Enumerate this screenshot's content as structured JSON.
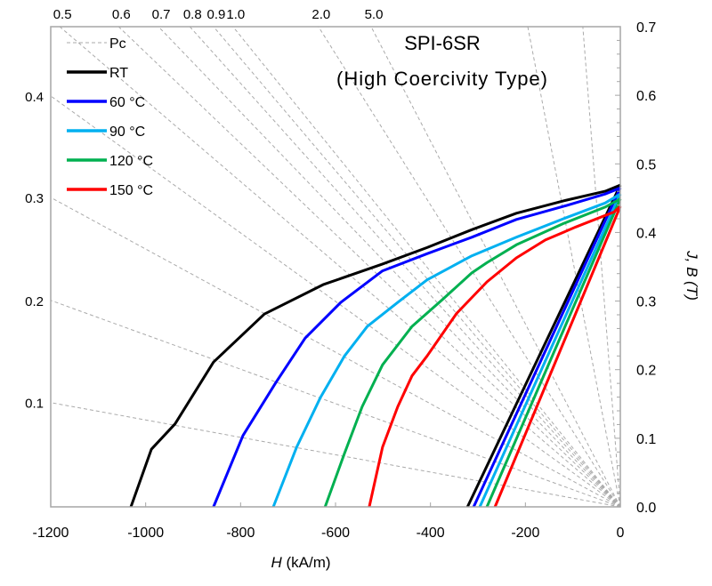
{
  "chart_data": {
    "type": "line",
    "title": [
      "SPI-6SR",
      "(High Coercivity Type)"
    ],
    "xlabel_italic": "H",
    "xlabel_unit": " (kA/m)",
    "ylabel": "J, B (T)",
    "xlim": [
      -1200,
      0
    ],
    "ylim": [
      0,
      0.7
    ],
    "xticks": [
      "-1200",
      "-1000",
      "-800",
      "-600",
      "-400",
      "-200",
      "0"
    ],
    "xtick_values": [
      -1200,
      -1000,
      -800,
      -600,
      -400,
      -200,
      0
    ],
    "yticks": [
      "0.0",
      "0.1",
      "0.2",
      "0.3",
      "0.4",
      "0.5",
      "0.6",
      "0.7"
    ],
    "ytick_values": [
      0,
      0.1,
      0.2,
      0.3,
      0.4,
      0.5,
      0.6,
      0.7
    ],
    "y_axis_side": "right",
    "grid": false,
    "legend_placement": "top-left",
    "pc_legend": "Pc",
    "pc_color": "#aaaaaa",
    "pc_lines": [
      {
        "label": "0.1",
        "end": [
          -1200,
          0.152
        ],
        "label_side": "left"
      },
      {
        "label": "0.2",
        "end": [
          -1200,
          0.301
        ],
        "label_side": "left"
      },
      {
        "label": "0.3",
        "end": [
          -1200,
          0.451
        ],
        "label_side": "left"
      },
      {
        "label": "0.4",
        "end": [
          -1200,
          0.599
        ],
        "label_side": "left"
      },
      {
        "label": "0.5",
        "end": [
          -1181,
          0.7
        ],
        "label_side": "top"
      },
      {
        "label": "0.6",
        "end": [
          -1057,
          0.7
        ],
        "label_side": "top"
      },
      {
        "label": "0.7",
        "end": [
          -973,
          0.7
        ],
        "label_side": "top"
      },
      {
        "label": "0.8",
        "end": [
          -907,
          0.7
        ],
        "label_side": "top"
      },
      {
        "label": "0.9",
        "end": [
          -857,
          0.7
        ],
        "label_side": "top"
      },
      {
        "label": "1.0",
        "end": [
          -816,
          0.7
        ],
        "label_side": "top"
      },
      {
        "label": "2.0",
        "end": [
          -636,
          0.7
        ],
        "label_side": "top"
      },
      {
        "label": "5.0",
        "end": [
          -525,
          0.7
        ],
        "label_side": "top"
      },
      {
        "label": "",
        "end": [
          -195,
          0.7
        ],
        "label_side": "top"
      },
      {
        "label": "",
        "end": [
          -79,
          0.7
        ],
        "label_side": "top"
      }
    ],
    "series": [
      {
        "name": "RT",
        "color": "#000000",
        "J": [
          [
            -1031,
            0
          ],
          [
            -988,
            0.084
          ],
          [
            -938,
            0.121
          ],
          [
            -857,
            0.211
          ],
          [
            -750,
            0.281
          ],
          [
            -626,
            0.324
          ],
          [
            -501,
            0.354
          ],
          [
            -407,
            0.378
          ],
          [
            -313,
            0.404
          ],
          [
            -219,
            0.428
          ],
          [
            -120,
            0.446
          ],
          [
            -32,
            0.46
          ],
          [
            0,
            0.469
          ]
        ],
        "B": [
          [
            -322,
            0
          ],
          [
            0,
            0.469
          ]
        ]
      },
      {
        "name": "60 °C",
        "color": "#0000ff",
        "J": [
          [
            -857,
            0
          ],
          [
            -795,
            0.104
          ],
          [
            -726,
            0.181
          ],
          [
            -664,
            0.246
          ],
          [
            -589,
            0.298
          ],
          [
            -501,
            0.344
          ],
          [
            -407,
            0.369
          ],
          [
            -313,
            0.393
          ],
          [
            -219,
            0.419
          ],
          [
            -120,
            0.438
          ],
          [
            -32,
            0.456
          ],
          [
            0,
            0.465
          ]
        ],
        "B": [
          [
            -309,
            0
          ],
          [
            0,
            0.465
          ]
        ]
      },
      {
        "name": "90 °C",
        "color": "#00b0f0",
        "J": [
          [
            -731,
            0
          ],
          [
            -682,
            0.087
          ],
          [
            -632,
            0.159
          ],
          [
            -581,
            0.22
          ],
          [
            -533,
            0.263
          ],
          [
            -469,
            0.298
          ],
          [
            -407,
            0.331
          ],
          [
            -313,
            0.366
          ],
          [
            -219,
            0.393
          ],
          [
            -120,
            0.42
          ],
          [
            -32,
            0.443
          ],
          [
            0,
            0.456
          ]
        ],
        "B": [
          [
            -296,
            0
          ],
          [
            0,
            0.456
          ]
        ]
      },
      {
        "name": "120 °C",
        "color": "#00b050",
        "J": [
          [
            -622,
            0
          ],
          [
            -581,
            0.078
          ],
          [
            -544,
            0.146
          ],
          [
            -501,
            0.207
          ],
          [
            -439,
            0.263
          ],
          [
            -375,
            0.302
          ],
          [
            -313,
            0.341
          ],
          [
            -281,
            0.356
          ],
          [
            -219,
            0.382
          ],
          [
            -120,
            0.413
          ],
          [
            -32,
            0.437
          ],
          [
            0,
            0.449
          ]
        ],
        "B": [
          [
            -281,
            0
          ],
          [
            0,
            0.449
          ]
        ]
      },
      {
        "name": "150 °C",
        "color": "#ff0000",
        "J": [
          [
            -529,
            0
          ],
          [
            -501,
            0.087
          ],
          [
            -469,
            0.146
          ],
          [
            -439,
            0.191
          ],
          [
            -407,
            0.22
          ],
          [
            -345,
            0.282
          ],
          [
            -281,
            0.328
          ],
          [
            -219,
            0.363
          ],
          [
            -158,
            0.389
          ],
          [
            -94,
            0.408
          ],
          [
            -13,
            0.43
          ],
          [
            0,
            0.438
          ]
        ],
        "B": [
          [
            -264,
            0
          ],
          [
            0,
            0.438
          ]
        ]
      }
    ]
  }
}
